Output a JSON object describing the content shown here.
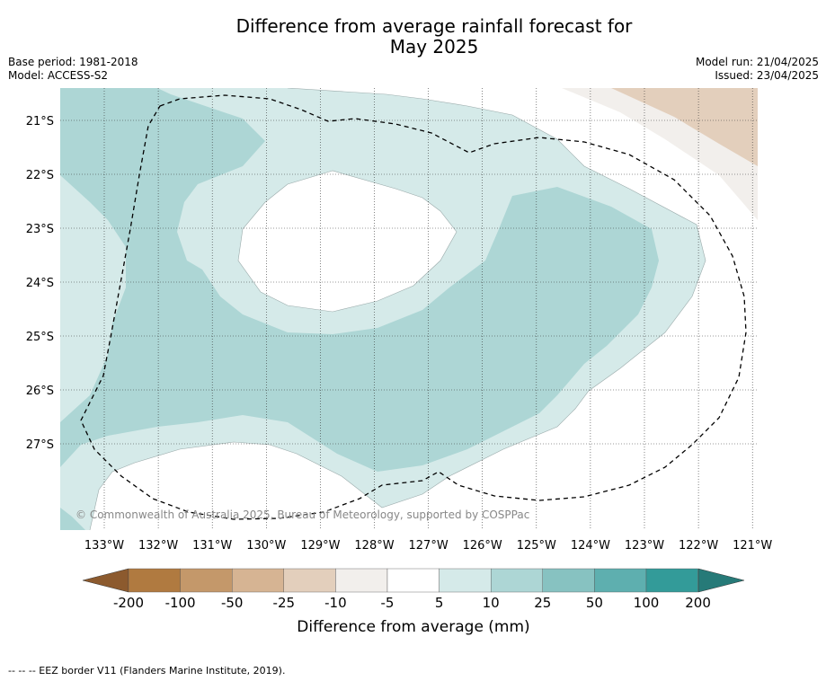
{
  "title": {
    "line1": "Difference from average rainfall forecast for",
    "line2": "May 2025"
  },
  "meta": {
    "base_period": "Base period: 1981-2018",
    "model": "Model: ACCESS-S2",
    "model_run": "Model run: 21/04/2025",
    "issued": "Issued: 23/04/2025"
  },
  "map": {
    "longitude_ticks": [
      "133°W",
      "132°W",
      "131°W",
      "130°W",
      "129°W",
      "128°W",
      "127°W",
      "126°W",
      "125°W",
      "124°W",
      "123°W",
      "122°W",
      "121°W"
    ],
    "latitude_ticks": [
      "21°S",
      "22°S",
      "23°S",
      "24°S",
      "25°S",
      "26°S",
      "27°S"
    ],
    "attribution": "© Commonwealth of Australia 2025, Bureau of Meteorology, supported by COSPPac",
    "colors": {
      "dry_10_to_5": "#f2efec",
      "dry_25_to_10": "#e3cfbc",
      "wet_5_to_10": "#d5eae9",
      "wet_10_to_25": "#add6d5",
      "eez_border": "#000000"
    }
  },
  "legend": {
    "labels": [
      "-200",
      "-100",
      "-50",
      "-25",
      "-10",
      "-5",
      "5",
      "10",
      "25",
      "50",
      "100",
      "200"
    ],
    "colors": [
      "#b07a40",
      "#c4986a",
      "#d6b493",
      "#e3cfbc",
      "#f2efec",
      "#ffffff",
      "#d5eae9",
      "#add6d5",
      "#87c2c1",
      "#5eafaf",
      "#339b99"
    ],
    "under_color": "#8c5a2e",
    "over_color": "#267a78",
    "axis_label": "Difference from average (mm)"
  },
  "footer": {
    "eez_note": "--  --  -- EEZ border V11 (Flanders Marine Institute, 2019)."
  }
}
